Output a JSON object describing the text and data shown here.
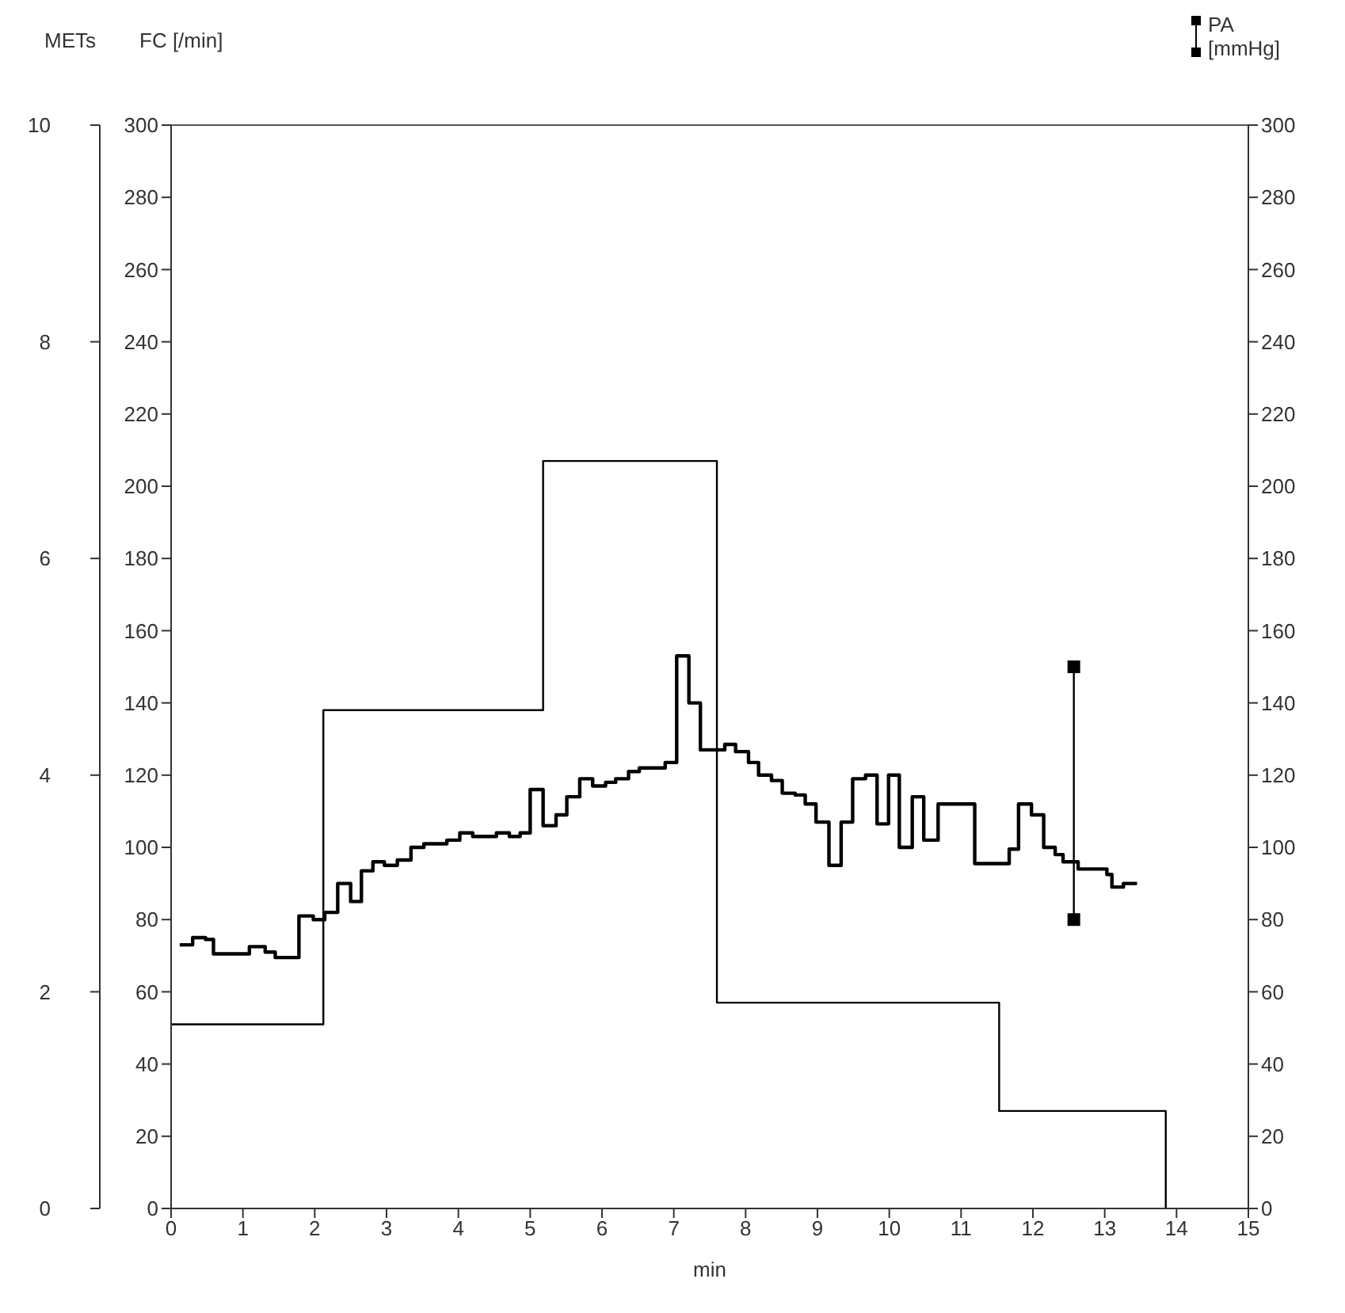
{
  "chart_data": {
    "type": "step",
    "xlabel": "min",
    "ylabel": "FC [/min]",
    "y2label": "[mmHg]",
    "y3label": "METs",
    "xlim": [
      0,
      15
    ],
    "xticks": [
      0,
      1,
      2,
      3,
      4,
      5,
      6,
      7,
      8,
      9,
      10,
      11,
      12,
      13,
      14,
      15
    ],
    "ylim": [
      0,
      300
    ],
    "yticks": [
      0,
      20,
      40,
      60,
      80,
      100,
      120,
      140,
      160,
      180,
      200,
      220,
      240,
      260,
      280,
      300
    ],
    "y2lim": [
      0,
      300
    ],
    "y2ticks": [
      0,
      20,
      40,
      60,
      80,
      100,
      120,
      140,
      160,
      180,
      200,
      220,
      240,
      260,
      280,
      300
    ],
    "y3lim": [
      0,
      10
    ],
    "y3ticks": [
      0,
      2,
      4,
      6,
      8,
      10
    ],
    "grid": false,
    "legend": "top right",
    "series": [
      {
        "axis": "y3",
        "color": "#000000",
        "x": [
          0,
          2.12,
          5.18,
          7.6,
          11.53,
          13.85
        ],
        "values": [
          1.7,
          4.6,
          6.9,
          1.9,
          0.9,
          0
        ]
      },
      {
        "axis": "y",
        "color": "#000000",
        "x": [
          0.12,
          0.3,
          0.48,
          0.59,
          1.09,
          1.31,
          1.45,
          1.78,
          1.98,
          2.14,
          2.32,
          2.5,
          2.65,
          2.81,
          2.97,
          3.15,
          3.34,
          3.52,
          3.84,
          4.02,
          4.2,
          4.53,
          4.71,
          4.86,
          5.0,
          5.18,
          5.36,
          5.51,
          5.69,
          5.87,
          6.05,
          6.19,
          6.37,
          6.52,
          6.88,
          7.04,
          7.21,
          7.37,
          7.71,
          7.86,
          8.04,
          8.18,
          8.36,
          8.51,
          8.69,
          8.83,
          8.98,
          9.16,
          9.33,
          9.49,
          9.67,
          9.83,
          9.99,
          10.14,
          10.32,
          10.48,
          10.68,
          11.19,
          11.67,
          11.8,
          11.98,
          12.15,
          12.31,
          12.42,
          12.63,
          13.03,
          13.1,
          13.26,
          13.45
        ],
        "values": [
          73,
          75,
          74.5,
          70.5,
          72.5,
          71,
          69.5,
          81,
          80,
          82,
          90,
          85,
          93.5,
          96,
          95,
          96.5,
          100,
          101,
          102,
          104,
          103,
          104,
          103,
          104,
          116,
          106,
          109,
          114,
          119,
          117,
          118,
          119,
          121,
          122,
          123.5,
          153,
          140,
          127,
          128.5,
          126.5,
          123.5,
          120,
          118.5,
          115,
          114.5,
          112,
          107,
          95,
          107,
          119,
          120,
          106.5,
          120,
          100,
          114,
          102,
          112,
          95.5,
          99.5,
          112,
          109,
          100,
          98,
          96,
          94,
          92.5,
          89,
          90,
          90
        ]
      },
      {
        "type": "line",
        "name": "PA",
        "axis": "y2",
        "color": "#000000",
        "marker": "square",
        "x": [
          12.57,
          12.57
        ],
        "values": [
          150,
          80
        ]
      }
    ]
  }
}
